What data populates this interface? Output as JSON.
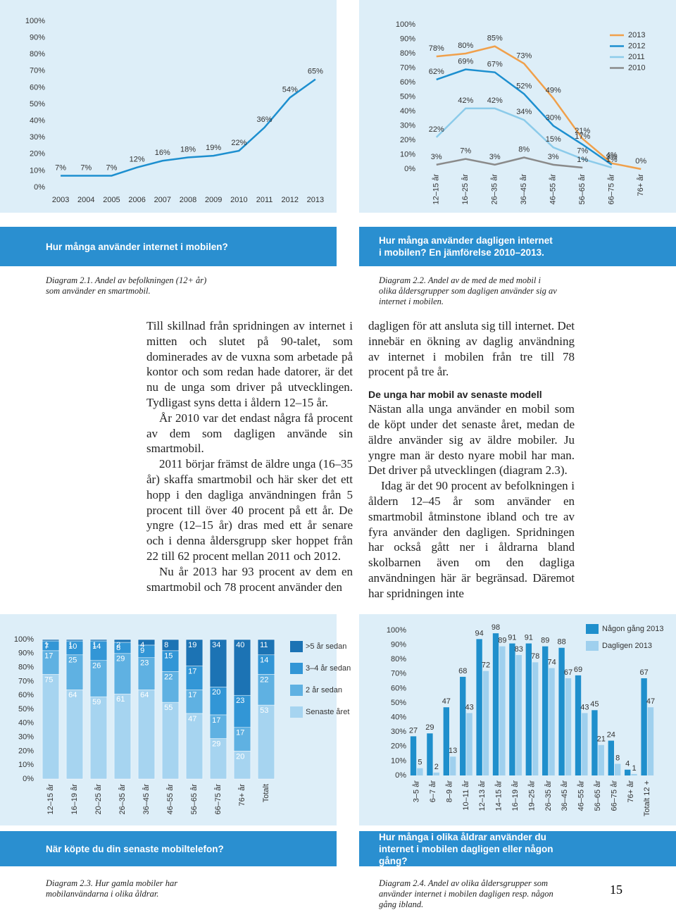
{
  "chart_data": [
    {
      "type": "line",
      "title": "Hur många använder internet i mobilen?",
      "caption": "Diagram 2.1. Andel av befolkningen (12+ år) som använder en smartmobil.",
      "categories": [
        "2003",
        "2004",
        "2005",
        "2006",
        "2007",
        "2008",
        "2009",
        "2010",
        "2011",
        "2012",
        "2013"
      ],
      "values": [
        7,
        7,
        7,
        12,
        16,
        18,
        19,
        22,
        36,
        54,
        65
      ],
      "value_labels": [
        "7%",
        "7%",
        "7%",
        "12%",
        "16%",
        "18%",
        "19%",
        "22%",
        "36%",
        "54%",
        "65%"
      ],
      "color": "#1d8fcf",
      "ylim": [
        0,
        100
      ],
      "yticks": [
        {
          "value": 0,
          "label": "0%"
        },
        {
          "value": 10,
          "label": "10%"
        },
        {
          "value": 20,
          "label": "20%"
        },
        {
          "value": 30,
          "label": "30%"
        },
        {
          "value": 40,
          "label": "40%"
        },
        {
          "value": 50,
          "label": "50%"
        },
        {
          "value": 60,
          "label": "60%"
        },
        {
          "value": 70,
          "label": "70%"
        },
        {
          "value": 80,
          "label": "80%"
        },
        {
          "value": 90,
          "label": "90%"
        },
        {
          "value": 100,
          "label": "100%"
        }
      ]
    },
    {
      "type": "line",
      "title": "Hur många använder dagligen internet i mobilen? En jämförelse 2010–2013.",
      "caption": "Diagram 2.2. Andel av de med de med mobil i olika åldersgrupper som dagligen använder sig av internet i mobilen.",
      "categories": [
        "12–15 år",
        "16–25 år",
        "26–35 år",
        "36–45 år",
        "46–55 år",
        "56–65 år",
        "66–75 år",
        "76+ år"
      ],
      "series": [
        {
          "name": "2013",
          "color": "#f0a04b",
          "values": [
            78,
            80,
            85,
            73,
            49,
            21,
            4,
            0
          ],
          "value_labels": [
            "78%",
            "80%",
            "85%",
            "73%",
            "49%",
            "21%",
            "4%",
            "0%"
          ]
        },
        {
          "name": "2012",
          "color": "#1d8fcf",
          "values": [
            62,
            69,
            67,
            52,
            30,
            17,
            3,
            null
          ],
          "value_labels": [
            "62%",
            "69%",
            "67%",
            "52%",
            "30%",
            "17%",
            "3%",
            null
          ]
        },
        {
          "name": "2011",
          "color": "#8ccbea",
          "values": [
            22,
            42,
            42,
            34,
            15,
            7,
            1,
            null
          ],
          "value_labels": [
            "22%",
            "42%",
            "42%",
            "34%",
            "15%",
            "7%",
            "1%",
            null
          ]
        },
        {
          "name": "2010",
          "color": "#8a8a8a",
          "values": [
            3,
            7,
            3,
            8,
            3,
            1,
            null,
            null
          ],
          "value_labels": [
            "3%",
            "7%",
            "3%",
            "8%",
            "3%",
            "1%",
            null,
            null
          ]
        }
      ],
      "legend": "top-right",
      "ylim": [
        0,
        100
      ],
      "yticks": [
        {
          "value": 0,
          "label": "0%"
        },
        {
          "value": 10,
          "label": "10%"
        },
        {
          "value": 20,
          "label": "20%"
        },
        {
          "value": 30,
          "label": "30%"
        },
        {
          "value": 40,
          "label": "40%"
        },
        {
          "value": 50,
          "label": "50%"
        },
        {
          "value": 60,
          "label": "60%"
        },
        {
          "value": 70,
          "label": "70%"
        },
        {
          "value": 80,
          "label": "80%"
        },
        {
          "value": 90,
          "label": "90%"
        },
        {
          "value": 100,
          "label": "100%"
        }
      ]
    },
    {
      "type": "bar",
      "stacked": true,
      "title": "När köpte du din senaste mobiltelefon?",
      "caption": "Diagram 2.3. Hur gamla mobiler har mobilanvändarna i olika åldrar.",
      "categories": [
        "12–15 år",
        "16–19 år",
        "20–25 år",
        "26–35 år",
        "36–45 år",
        "46–55 år",
        "56–65 år",
        "66–75 år",
        "76+ år",
        "Totalt"
      ],
      "series": [
        {
          "name": "Senaste året",
          "color": "#a6d4f0",
          "values": [
            75,
            64,
            59,
            61,
            64,
            55,
            47,
            29,
            20,
            53
          ]
        },
        {
          "name": "2 år sedan",
          "color": "#5fb1e2",
          "values": [
            17,
            25,
            26,
            29,
            23,
            22,
            17,
            17,
            17,
            22
          ]
        },
        {
          "name": "3–4 år sedan",
          "color": "#3296d6",
          "values": [
            7,
            10,
            14,
            8,
            9,
            15,
            17,
            20,
            23,
            14
          ]
        },
        {
          "name": ">5 år sedan",
          "color": "#1c73b4",
          "values": [
            1,
            1,
            1,
            2,
            4,
            8,
            19,
            34,
            40,
            11
          ]
        }
      ],
      "legend": "right",
      "ylim": [
        0,
        100
      ],
      "yticks": [
        {
          "value": 0,
          "label": "0%"
        },
        {
          "value": 10,
          "label": "10%"
        },
        {
          "value": 20,
          "label": "20%"
        },
        {
          "value": 30,
          "label": "30%"
        },
        {
          "value": 40,
          "label": "40%"
        },
        {
          "value": 50,
          "label": "50%"
        },
        {
          "value": 60,
          "label": "60%"
        },
        {
          "value": 70,
          "label": "70%"
        },
        {
          "value": 80,
          "label": "80%"
        },
        {
          "value": 90,
          "label": "90%"
        },
        {
          "value": 100,
          "label": "100%"
        }
      ]
    },
    {
      "type": "bar",
      "stacked": false,
      "title": "Hur många i olika åldrar använder du internet i mobilen dagligen eller någon gång?",
      "caption": "Diagram 2.4. Andel av olika åldersgrupper som använder internet i mobilen dagligen resp. någon gång ibland.",
      "categories": [
        "3–5 år",
        "6–7 år",
        "8–9 år",
        "10–11 år",
        "12–13 år",
        "14–15 år",
        "16–19 år",
        "19–25 år",
        "26–35 år",
        "36–45 år",
        "46–55 år",
        "56–65 år",
        "66–75 år",
        "76+ år",
        "Totalt 12 +"
      ],
      "series": [
        {
          "name": "Någon gång 2013",
          "color": "#1f8fcc",
          "values": [
            27,
            29,
            47,
            68,
            94,
            98,
            91,
            91,
            89,
            88,
            69,
            45,
            24,
            4,
            67
          ]
        },
        {
          "name": "Dagligen 2013",
          "color": "#9fd0ee",
          "values": [
            5,
            2,
            13,
            43,
            72,
            89,
            83,
            78,
            74,
            67,
            43,
            21,
            8,
            1,
            47
          ]
        }
      ],
      "legend": "top-right",
      "ylim": [
        0,
        100
      ],
      "yticks": [
        {
          "value": 0,
          "label": "0%"
        },
        {
          "value": 10,
          "label": "10%"
        },
        {
          "value": 20,
          "label": "20%"
        },
        {
          "value": 30,
          "label": "30%"
        },
        {
          "value": 40,
          "label": "40%"
        },
        {
          "value": 50,
          "label": "50%"
        },
        {
          "value": 60,
          "label": "60%"
        },
        {
          "value": 70,
          "label": "70%"
        },
        {
          "value": 80,
          "label": "80%"
        },
        {
          "value": 90,
          "label": "90%"
        },
        {
          "value": 100,
          "label": "100%"
        }
      ]
    }
  ],
  "body": {
    "left": [
      "Till skillnad från spridningen av internet i mitten och slutet på 90-talet, som dominerades av de vuxna som arbetade på kontor och som redan hade datorer, är det nu de unga som driver på utvecklingen. Tydligast syns detta i åldern 12–15 år.",
      "År 2010 var det endast några få procent av dem som dagligen använde sin smartmobil.",
      "2011 börjar främst de äldre unga (16–35 år) skaffa smartmobil och här sker det ett hopp i den dagliga användningen från 5 procent till över 40 procent på ett år. De yngre (12–15 år) dras med ett år senare och i denna åldersgrupp sker hoppet från 22 till 62 procent mellan 2011 och 2012.",
      "Nu år 2013 har 93 procent av dem en smartmobil och 78 procent använder den"
    ],
    "right_intro": "dagligen för att ansluta sig till internet. Det innebär en ökning av daglig användning av internet i mobilen från tre till 78 procent på tre år.",
    "heading": "De unga har mobil av senaste modell",
    "right": [
      "Nästan alla unga använder en mobil som de köpt under det senaste året, medan de äldre använder sig av äldre mobiler. Ju yngre man är desto nyare mobil har man. Det driver på utvecklingen (diagram 2.3).",
      "Idag är det 90 procent av befolkningen i åldern 12–45 år som använder en smartmobil åtminstone ibland och tre av fyra använder den dagligen. Spridningen har också gått ner i åldrarna bland skolbarnen även om den dagliga användningen här är begränsad. Däremot har spridningen inte"
    ]
  },
  "page_number": "15"
}
